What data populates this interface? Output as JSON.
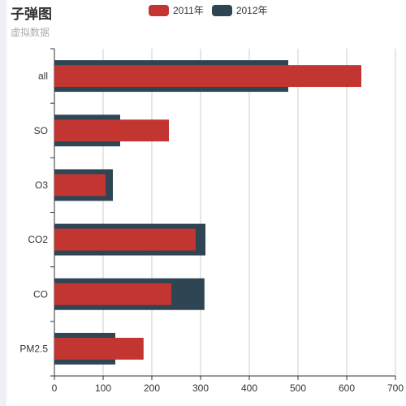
{
  "colors": {
    "series_2011": "#c23531",
    "series_2012": "#2f4554",
    "grid": "#cccccc",
    "axis": "#333333"
  },
  "chart_data": {
    "type": "bar",
    "orientation": "horizontal",
    "title": "子弹图",
    "subtitle": "虚拟数据",
    "categories": [
      "all",
      "SO",
      "O3",
      "CO2",
      "CO",
      "PM2.5"
    ],
    "series": [
      {
        "name": "2011年",
        "values": [
          630,
          235,
          105,
          290,
          240,
          183
        ]
      },
      {
        "name": "2012年",
        "values": [
          480,
          135,
          120,
          310,
          308,
          125
        ]
      }
    ],
    "xlim": [
      0,
      700
    ],
    "xticks": [
      "0",
      "100",
      "200",
      "300",
      "400",
      "500",
      "600",
      "700"
    ],
    "legend_position": "top-center",
    "grid": "vertical-lines"
  }
}
